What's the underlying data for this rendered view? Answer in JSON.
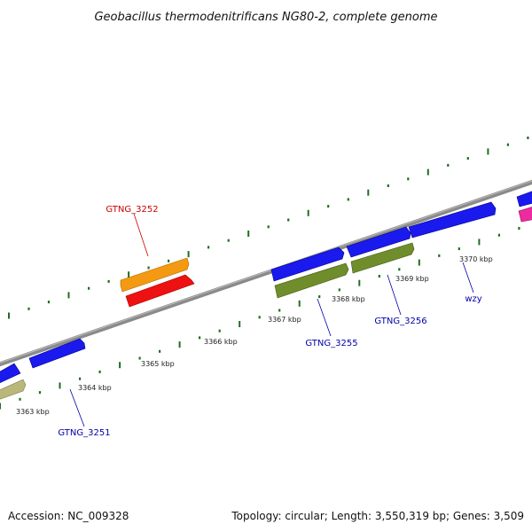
{
  "title": "Geobacillus thermodenitrificans NG80-2, complete genome",
  "accession": "Accession: NC_009328",
  "topology": "Topology: circular; Length: 3,550,319 bp; Genes: 3,509",
  "scale_labels": [
    "3363 kbp",
    "3364 kbp",
    "3365 kbp",
    "3366 kbp",
    "3367 kbp",
    "3368 kbp",
    "3369 kbp",
    "3370 kbp"
  ],
  "gene_labels": [
    "GTNG_3252",
    "GTNG_3251",
    "GTNG_3255",
    "GTNG_3256",
    "wzy"
  ],
  "colors": {
    "backbone": "#8a8a8a",
    "tick": "#1e6e1e",
    "cds_blue": "#1a1aee",
    "cds_orange": "#f39a12",
    "cds_red": "#ee1111",
    "cds_olive": "#6f8e2b",
    "cds_khaki": "#b9b77a",
    "cds_pink": "#ee2aa0",
    "label_red": "#cc0000",
    "label_blue": "#0000aa"
  }
}
